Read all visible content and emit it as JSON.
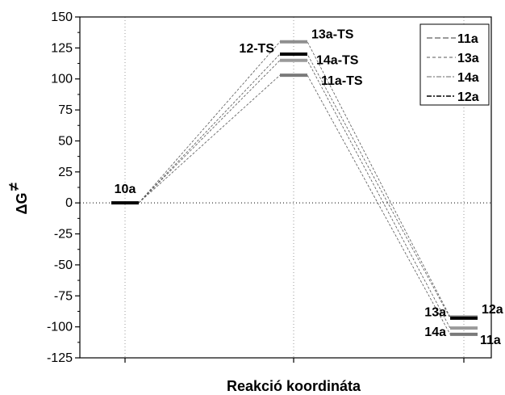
{
  "chart_data": {
    "type": "line",
    "title": "",
    "xlabel": "Reakció koordináta",
    "ylabel": "ΔG",
    "ylabel_superscript": "≠",
    "ylim": [
      -125,
      150
    ],
    "yticks": [
      150,
      125,
      100,
      75,
      50,
      25,
      0,
      -25,
      -50,
      -75,
      -100,
      -125
    ],
    "x_positions": [
      "reactant",
      "transition_state",
      "product"
    ],
    "grid": "vertical dotted lines at each reaction coordinate",
    "zero_line": "dotted",
    "legend_placement": "top-right",
    "series": [
      {
        "name": "11a",
        "color": "#7a7a7a",
        "dash": "long-dash",
        "values": [
          0,
          103,
          -106
        ],
        "labels": [
          "10a",
          "11a-TS",
          "11a"
        ]
      },
      {
        "name": "13a",
        "color": "#8f8f8f",
        "dash": "dash",
        "values": [
          0,
          130,
          -92
        ],
        "labels": [
          "10a",
          "13a-TS",
          "13a"
        ]
      },
      {
        "name": "14a",
        "color": "#9a9a9a",
        "dash": "dash-dot",
        "values": [
          0,
          115,
          -101
        ],
        "labels": [
          "10a",
          "14a-TS",
          "14a"
        ]
      },
      {
        "name": "12a",
        "color": "#000000",
        "dash": "dash-dot",
        "values": [
          0,
          120,
          -93
        ],
        "labels": [
          "10a",
          "12-TS",
          "12a"
        ]
      }
    ]
  }
}
